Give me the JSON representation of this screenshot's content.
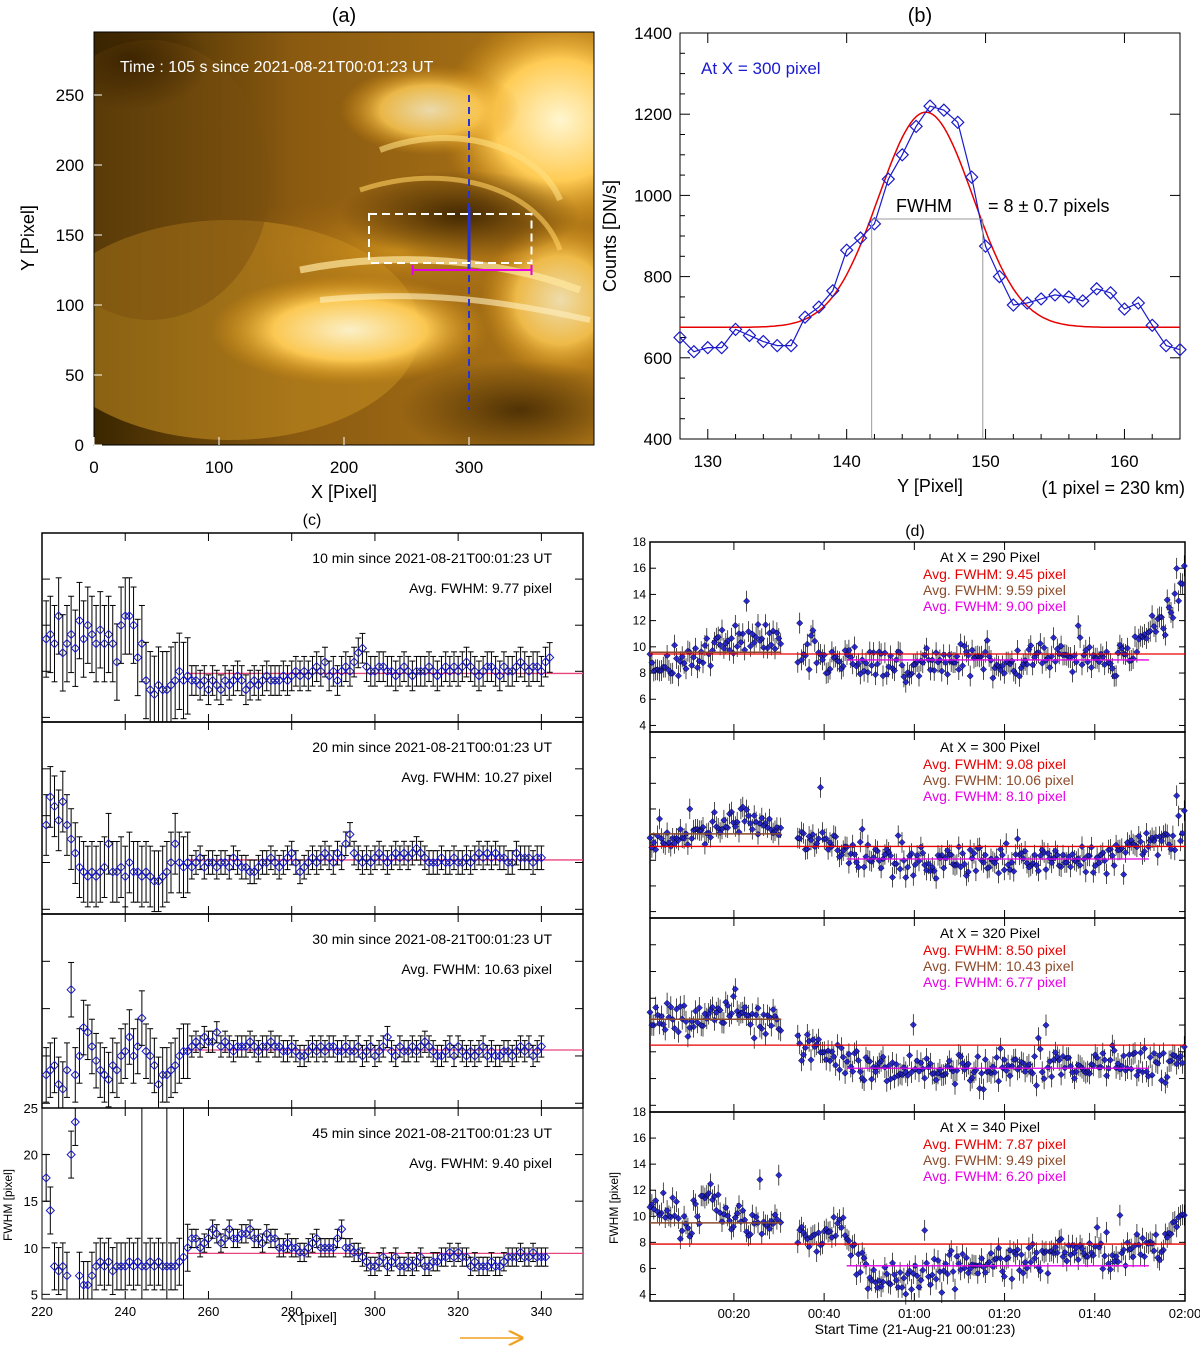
{
  "panels": {
    "a": {
      "label": "(a)",
      "time_text": "Time : 105 s since 2021-08-21T00:01:23 UT",
      "xlabel": "X [Pixel]",
      "ylabel": "Y [Pixel]",
      "xticks": [
        0,
        100,
        200,
        300
      ],
      "yticks": [
        0,
        50,
        100,
        150,
        200,
        250
      ],
      "xlim": [
        0,
        400
      ],
      "ylim": [
        0,
        295
      ],
      "cut_x": 300,
      "box": {
        "x0": 220,
        "x1": 350,
        "y0": 130,
        "y1": 165
      },
      "bar": {
        "x0": 255,
        "x1": 350,
        "y": 125
      }
    },
    "b": {
      "label": "(b)",
      "note": "At X = 300 pixel",
      "fwhm_label": "FWHM",
      "fwhm_value": "= 8 ± 0.7 pixels",
      "xlabel": "Y [Pixel]",
      "scale_note": "(1 pixel = 230 km)",
      "ylabel": "Counts  [DN/s]"
    },
    "c": {
      "label": "(c)",
      "xlabel": "X  [pixel]",
      "ylabel": "FWHM [pixel]",
      "xticks": [
        220,
        240,
        260,
        280,
        300,
        320,
        340
      ],
      "yticks": [
        5,
        10,
        15,
        20,
        25
      ],
      "sub": [
        {
          "title": "10 min since 2021-08-21T00:01:23 UT",
          "avg": "Avg. FWHM:  9.77 pixel"
        },
        {
          "title": "20 min since 2021-08-21T00:01:23 UT",
          "avg": "Avg. FWHM:  10.27 pixel"
        },
        {
          "title": "30 min since 2021-08-21T00:01:23 UT",
          "avg": "Avg. FWHM:  10.63 pixel"
        },
        {
          "title": "45 min since 2021-08-21T00:01:23 UT",
          "avg": "Avg. FWHM:  9.40 pixel"
        }
      ]
    },
    "d": {
      "label": "(d)",
      "xlabel": "Start Time (21-Aug-21 00:01:23)",
      "ylabel": "FWHM [pixel]",
      "xticks": [
        "00:20",
        "00:40",
        "01:00",
        "01:20",
        "01:40",
        "02:00"
      ],
      "yticks": [
        4,
        6,
        8,
        10,
        12,
        14,
        16,
        18
      ],
      "sub": [
        {
          "title": "At X = 290 Pixel",
          "avg_red": "Avg. FWHM:   9.45 pixel",
          "avg_brown": "Avg. FWHM:   9.59 pixel",
          "avg_magenta": "Avg. FWHM:   9.00 pixel"
        },
        {
          "title": "At X = 300 Pixel",
          "avg_red": "Avg. FWHM:   9.08 pixel",
          "avg_brown": "Avg. FWHM:   10.06 pixel",
          "avg_magenta": "Avg. FWHM:   8.10 pixel"
        },
        {
          "title": "At X = 320 Pixel",
          "avg_red": "Avg. FWHM:   8.50 pixel",
          "avg_brown": "Avg. FWHM:   10.43 pixel",
          "avg_magenta": "Avg. FWHM:   6.77 pixel"
        },
        {
          "title": "At X = 340 Pixel",
          "avg_red": "Avg. FWHM:   7.87 pixel",
          "avg_brown": "Avg. FWHM:   9.49 pixel",
          "avg_magenta": "Avg. FWHM:   6.20 pixel"
        }
      ]
    }
  },
  "colors": {
    "blue": "#1a1acc",
    "red": "#e60000",
    "brown": "#8b4a2b",
    "magenta": "#e600e6",
    "pink": "#e8457f",
    "orange": "#f0a020",
    "gray": "#999999"
  },
  "chart_data": [
    {
      "type": "line",
      "title": "(b)",
      "xlabel": "Y [Pixel]",
      "ylabel": "Counts  [DN/s]",
      "xlim": [
        128,
        164
      ],
      "ylim": [
        400,
        1400
      ],
      "xticks": [
        130,
        140,
        150,
        160
      ],
      "yticks": [
        400,
        600,
        800,
        1000,
        1200,
        1400
      ],
      "series": [
        {
          "name": "data",
          "x": [
            128,
            129,
            130,
            131,
            132,
            133,
            134,
            135,
            136,
            137,
            138,
            139,
            140,
            141,
            142,
            143,
            144,
            145,
            146,
            147,
            148,
            149,
            150,
            151,
            152,
            153,
            154,
            155,
            156,
            157,
            158,
            159,
            160,
            161,
            162,
            163,
            164
          ],
          "values": [
            650,
            615,
            625,
            625,
            670,
            655,
            640,
            630,
            630,
            700,
            725,
            765,
            865,
            895,
            930,
            1040,
            1100,
            1170,
            1220,
            1210,
            1180,
            1045,
            875,
            800,
            730,
            735,
            745,
            755,
            750,
            740,
            770,
            760,
            720,
            735,
            680,
            630,
            620
          ]
        },
        {
          "name": "gaussian fit",
          "baseline": 675,
          "amplitude": 530,
          "center": 145.7,
          "fwhm": 8.0
        }
      ],
      "fwhm_edges": [
        141.8,
        149.8
      ],
      "fwhm_level": 942
    },
    {
      "type": "scatter",
      "title": "(c)",
      "xlabel": "X  [pixel]",
      "xlim": [
        220,
        350
      ],
      "ylim": [
        4.5,
        25
      ],
      "series": [
        {
          "name": "10 min",
          "avg": 9.77,
          "x_start": 221,
          "x_step": 1,
          "values": [
            13.5,
            14,
            13,
            16,
            12,
            13,
            14,
            12.5,
            15.5,
            13.5,
            15,
            14,
            13,
            14.5,
            13,
            14,
            13,
            11,
            15,
            16,
            16,
            15,
            11.5,
            13,
            9,
            8,
            7.5,
            8.5,
            8,
            8,
            8.5,
            9,
            10,
            9,
            9.5,
            9,
            9,
            8.5,
            9,
            8,
            9,
            8.5,
            8,
            9,
            8.5,
            9,
            9.5,
            9,
            8,
            8.5,
            9,
            8.5,
            9,
            9.5,
            9,
            9,
            9,
            9.5,
            9,
            9.5,
            10,
            9.5,
            10,
            9.5,
            10,
            10.5,
            10,
            11,
            9.5,
            10,
            9,
            10,
            10.5,
            10,
            11,
            12,
            12.5,
            10.5,
            10,
            10,
            10.5,
            10.5,
            10,
            10,
            9.5,
            10,
            10.5,
            10,
            9.5,
            10,
            10,
            10,
            10.5,
            10,
            9.5,
            10,
            10.5,
            10,
            10.5,
            10,
            10.5,
            11,
            10.5,
            10,
            9.5,
            10,
            10.5,
            10.5,
            10,
            9.5,
            10.5,
            10,
            10,
            10.5,
            11,
            10.5,
            10,
            10.5,
            10.5,
            10,
            11,
            11.5
          ],
          "err": 2.3
        },
        {
          "name": "20 min",
          "avg": 10.27,
          "x_start": 221,
          "x_step": 1,
          "values": [
            14,
            17,
            16,
            14.5,
            16.5,
            14,
            12.5,
            11,
            9.5,
            9,
            8.5,
            9,
            8.5,
            9,
            9.5,
            12,
            9,
            9,
            9.5,
            8.5,
            10,
            9,
            9,
            8.5,
            9,
            8.5,
            8,
            8,
            8.5,
            9,
            10,
            12,
            10,
            9.5,
            10,
            9.5,
            10,
            10.5,
            9.5,
            10,
            10,
            9.5,
            10,
            10,
            9.5,
            10.5,
            10,
            9.5,
            9.5,
            9,
            9,
            9.5,
            10,
            10,
            10.5,
            10,
            9.5,
            10,
            10.5,
            11,
            10,
            9,
            9.5,
            10,
            10.5,
            10,
            10.5,
            11,
            10.5,
            10,
            11,
            10.5,
            12,
            13,
            11,
            10.5,
            10,
            10.5,
            10,
            10.5,
            11,
            10.5,
            10,
            10.5,
            11,
            10.5,
            11,
            10.5,
            11,
            11.5,
            11,
            10.5,
            10,
            10,
            10,
            10.5,
            10,
            10,
            10.5,
            10,
            10,
            10.5,
            10,
            10.5,
            11,
            10.5,
            11,
            10.5,
            11,
            10.5,
            10.5,
            10,
            10,
            11,
            10.5,
            10.5,
            10.5,
            10,
            10.5,
            10.5
          ],
          "err": 1.8
        },
        {
          "name": "30 min",
          "avg": 10.63,
          "x_start": 221,
          "x_step": 1,
          "values": [
            8,
            8.5,
            9,
            7,
            6.5,
            8.5,
            17,
            8,
            10,
            13,
            12.5,
            11,
            9.5,
            8.5,
            8,
            7.5,
            9,
            8.5,
            10,
            10.5,
            12,
            10,
            11,
            14,
            10.5,
            10,
            9,
            7,
            8,
            8,
            8.5,
            9,
            10,
            10.5,
            10.5,
            11,
            11.5,
            11,
            12,
            11.5,
            11.5,
            12.5,
            11,
            11.5,
            11,
            10.5,
            11,
            11,
            11,
            11.5,
            11,
            10.5,
            11,
            11,
            11.5,
            11,
            11,
            10.5,
            10.5,
            11,
            10.5,
            10,
            10,
            10.5,
            11,
            10.5,
            11,
            10.5,
            11,
            11,
            10.5,
            10.5,
            11,
            10.5,
            10.5,
            11,
            10,
            10.5,
            11,
            10,
            10.5,
            11,
            12,
            10.5,
            10,
            11,
            10.5,
            10.5,
            11,
            10.5,
            11,
            11.5,
            11,
            10.5,
            10,
            10,
            10.5,
            11,
            10,
            11,
            10.5,
            10,
            10.5,
            10,
            10.5,
            11,
            10,
            10.5,
            10,
            10,
            10.5,
            10.5,
            10,
            10.5,
            11,
            10.5,
            11,
            10,
            10.5,
            11
          ],
          "err": 1.6
        },
        {
          "name": "45 min",
          "avg": 9.4,
          "x_start": 221,
          "x_step": 1,
          "values": [
            17.5,
            14,
            8,
            7.5,
            8,
            7,
            20,
            23.5,
            7,
            6,
            6,
            7,
            8,
            8.5,
            8,
            8.5,
            7.5,
            8,
            8,
            8,
            8.5,
            8,
            8.5,
            8,
            8,
            8.5,
            8,
            8.5,
            8,
            8,
            8,
            8,
            8.5,
            9,
            10,
            11,
            11,
            10,
            10.5,
            11,
            12,
            11.5,
            10.5,
            11,
            12,
            11,
            11,
            11.5,
            11.5,
            12,
            11,
            11,
            10.5,
            11.5,
            11,
            11,
            10,
            10,
            10.5,
            10,
            10,
            9.5,
            9.5,
            10,
            10.5,
            11,
            10,
            10,
            10,
            10,
            11,
            12,
            10,
            10,
            9.5,
            9.5,
            9,
            8.5,
            8,
            8,
            8.5,
            9,
            8,
            8.5,
            9,
            8,
            8,
            8.5,
            8,
            8.5,
            9,
            8,
            8,
            8.5,
            8.5,
            9,
            9,
            9.5,
            9,
            9.5,
            9,
            9,
            8,
            8.5,
            8,
            8,
            8,
            8.5,
            8,
            8,
            8.5,
            9,
            9,
            9,
            9.5,
            9,
            9,
            9.5,
            9,
            9,
            9
          ],
          "err": 1.4
        }
      ]
    },
    {
      "type": "scatter",
      "title": "(d)",
      "xlabel": "Start Time (21-Aug-21 00:01:23)",
      "xlim_minutes": [
        1.4,
        120
      ],
      "ylim": [
        3.5,
        18
      ],
      "series": [
        {
          "name": "At X = 290 Pixel",
          "avg_red": 9.45,
          "avg_brown": 9.59,
          "avg_magenta": 9.0,
          "gap_minutes": [
            30.5,
            34
          ],
          "profile_t": [
            1,
            5,
            10,
            15,
            20,
            25,
            30,
            34,
            40,
            45,
            50,
            55,
            60,
            65,
            70,
            75,
            80,
            85,
            90,
            95,
            100,
            105,
            110,
            112,
            115,
            118,
            120
          ],
          "profile_v": [
            9,
            8.5,
            9,
            10,
            10.5,
            11,
            10.5,
            10,
            9.5,
            9,
            8.8,
            8.6,
            8.8,
            9,
            9.3,
            9,
            8.7,
            8.8,
            9,
            9,
            9.1,
            9.2,
            10,
            11,
            12,
            14,
            16
          ]
        },
        {
          "name": "At X = 300 Pixel",
          "avg_red": 9.08,
          "avg_brown": 10.06,
          "avg_magenta": 8.1,
          "gap_minutes": [
            30.5,
            34
          ],
          "profile_t": [
            1,
            5,
            10,
            15,
            20,
            25,
            30,
            34,
            40,
            45,
            50,
            55,
            60,
            65,
            70,
            75,
            80,
            85,
            90,
            95,
            100,
            105,
            110,
            115,
            120
          ],
          "profile_v": [
            9.5,
            9.5,
            10,
            10.5,
            11,
            11,
            10.5,
            10,
            9.5,
            8.5,
            8,
            7.8,
            7.8,
            8,
            8,
            8.1,
            8.2,
            8,
            8,
            8,
            8.2,
            8.5,
            8.8,
            9.5,
            10.5
          ]
        },
        {
          "name": "At X = 320 Pixel",
          "avg_red": 8.5,
          "avg_brown": 10.43,
          "avg_magenta": 6.77,
          "gap_minutes": [
            30.5,
            34
          ],
          "profile_t": [
            1,
            5,
            10,
            15,
            20,
            25,
            30,
            34,
            38,
            42,
            46,
            50,
            55,
            60,
            65,
            70,
            75,
            80,
            85,
            90,
            95,
            100,
            105,
            110,
            115,
            120
          ],
          "profile_v": [
            11,
            10.5,
            10.5,
            10.5,
            11,
            10.5,
            10.5,
            9,
            8,
            7.5,
            7.2,
            6.8,
            6.8,
            6.6,
            6.7,
            6.8,
            6.8,
            7,
            6.9,
            6.8,
            6.8,
            6.9,
            6.9,
            6.9,
            7,
            7.2
          ]
        },
        {
          "name": "At X = 340 Pixel",
          "avg_red": 7.87,
          "avg_brown": 9.49,
          "avg_magenta": 6.2,
          "gap_minutes": [
            30.5,
            34
          ],
          "profile_t": [
            1,
            5,
            10,
            14,
            18,
            22,
            26,
            30,
            34,
            38,
            42,
            45,
            48,
            52,
            56,
            60,
            65,
            70,
            75,
            80,
            85,
            90,
            95,
            100,
            105,
            110,
            115,
            118,
            120
          ],
          "profile_v": [
            11,
            10.5,
            9.5,
            11.5,
            10,
            9.5,
            9.5,
            9.5,
            8.5,
            8.5,
            9,
            8.5,
            6,
            5,
            5,
            5.5,
            5.8,
            6,
            6.2,
            6.5,
            6.8,
            7,
            7,
            7,
            7.2,
            7.5,
            8,
            9.5,
            9
          ]
        }
      ]
    }
  ]
}
